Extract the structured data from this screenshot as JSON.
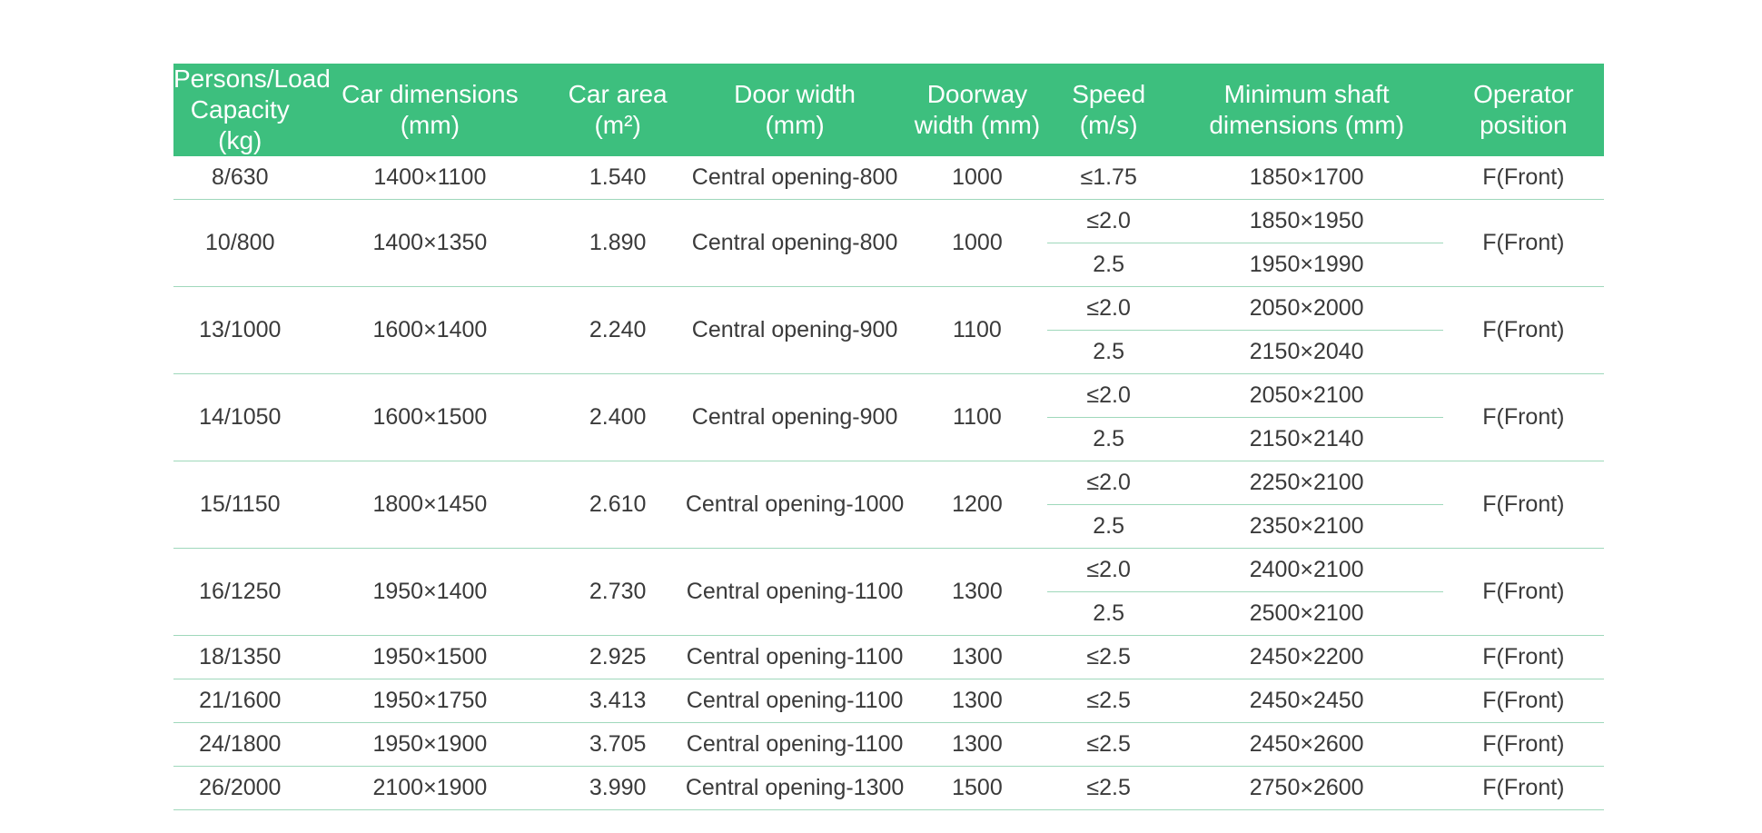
{
  "table": {
    "headers": [
      {
        "line1": "Persons/Load",
        "line2": "Capacity (kg)"
      },
      {
        "line1": "Car dimensions",
        "line2": "(mm)"
      },
      {
        "line1": "Car area",
        "line2": "(m²)"
      },
      {
        "line1": "Door width",
        "line2": "(mm)"
      },
      {
        "line1": "Doorway",
        "line2": "width (mm)"
      },
      {
        "line1": "Speed",
        "line2": "(m/s)"
      },
      {
        "line1": "Minimum shaft",
        "line2": "dimensions (mm)"
      },
      {
        "line1": "Operator",
        "line2": "position"
      }
    ],
    "rows": [
      {
        "capacity": "8/630",
        "car_dimensions": "1400×1100",
        "car_area": "1.540",
        "door_width": "Central opening-800",
        "doorway_width": "1000",
        "variants": [
          {
            "speed": "≤1.75",
            "shaft": "1850×1700"
          }
        ],
        "operator": "F(Front)"
      },
      {
        "capacity": "10/800",
        "car_dimensions": "1400×1350",
        "car_area": "1.890",
        "door_width": "Central opening-800",
        "doorway_width": "1000",
        "variants": [
          {
            "speed": "≤2.0",
            "shaft": "1850×1950"
          },
          {
            "speed": "2.5",
            "shaft": "1950×1990"
          }
        ],
        "operator": "F(Front)"
      },
      {
        "capacity": "13/1000",
        "car_dimensions": "1600×1400",
        "car_area": "2.240",
        "door_width": "Central opening-900",
        "doorway_width": "1100",
        "variants": [
          {
            "speed": "≤2.0",
            "shaft": "2050×2000"
          },
          {
            "speed": "2.5",
            "shaft": "2150×2040"
          }
        ],
        "operator": "F(Front)"
      },
      {
        "capacity": "14/1050",
        "car_dimensions": "1600×1500",
        "car_area": "2.400",
        "door_width": "Central opening-900",
        "doorway_width": "1100",
        "variants": [
          {
            "speed": "≤2.0",
            "shaft": "2050×2100"
          },
          {
            "speed": "2.5",
            "shaft": "2150×2140"
          }
        ],
        "operator": "F(Front)"
      },
      {
        "capacity": "15/1150",
        "car_dimensions": "1800×1450",
        "car_area": "2.610",
        "door_width": "Central opening-1000",
        "doorway_width": "1200",
        "variants": [
          {
            "speed": "≤2.0",
            "shaft": "2250×2100"
          },
          {
            "speed": "2.5",
            "shaft": "2350×2100"
          }
        ],
        "operator": "F(Front)"
      },
      {
        "capacity": "16/1250",
        "car_dimensions": "1950×1400",
        "car_area": "2.730",
        "door_width": "Central opening-1100",
        "doorway_width": "1300",
        "variants": [
          {
            "speed": "≤2.0",
            "shaft": "2400×2100"
          },
          {
            "speed": "2.5",
            "shaft": "2500×2100"
          }
        ],
        "operator": "F(Front)"
      },
      {
        "capacity": "18/1350",
        "car_dimensions": "1950×1500",
        "car_area": "2.925",
        "door_width": "Central opening-1100",
        "doorway_width": "1300",
        "variants": [
          {
            "speed": "≤2.5",
            "shaft": "2450×2200"
          }
        ],
        "operator": "F(Front)"
      },
      {
        "capacity": "21/1600",
        "car_dimensions": "1950×1750",
        "car_area": "3.413",
        "door_width": "Central opening-1100",
        "doorway_width": "1300",
        "variants": [
          {
            "speed": "≤2.5",
            "shaft": "2450×2450"
          }
        ],
        "operator": "F(Front)"
      },
      {
        "capacity": "24/1800",
        "car_dimensions": "1950×1900",
        "car_area": "3.705",
        "door_width": "Central opening-1100",
        "doorway_width": "1300",
        "variants": [
          {
            "speed": "≤2.5",
            "shaft": "2450×2600"
          }
        ],
        "operator": "F(Front)"
      },
      {
        "capacity": "26/2000",
        "car_dimensions": "2100×1900",
        "car_area": "3.990",
        "door_width": "Central opening-1300",
        "doorway_width": "1500",
        "variants": [
          {
            "speed": "≤2.5",
            "shaft": "2750×2600"
          }
        ],
        "operator": "F(Front)"
      }
    ]
  },
  "colors": {
    "header_bg": "#3dbf7e",
    "header_text": "#ffffff",
    "row_divider": "#9fd8bb",
    "body_text": "#3a3a3a"
  }
}
